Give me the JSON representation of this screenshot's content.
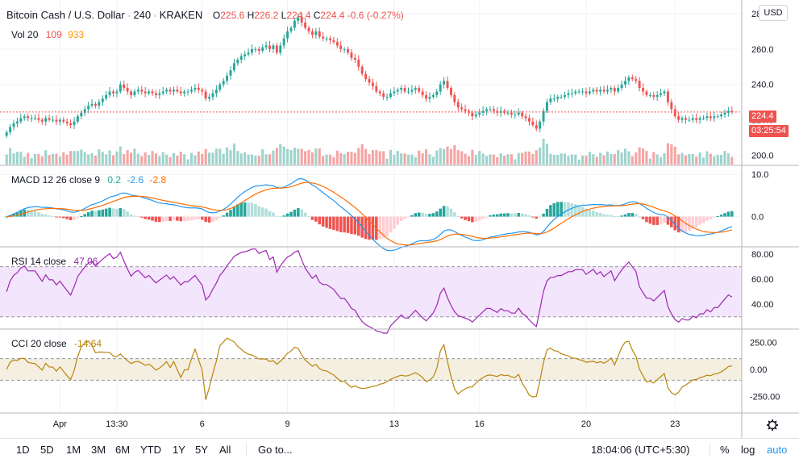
{
  "header": {
    "symbol": "Bitcoin Cash / U.S. Dollar",
    "interval": "240",
    "exchange": "KRAKEN",
    "open_label": "O",
    "open": "225.6",
    "high_label": "H",
    "high": "226.2",
    "low_label": "L",
    "low": "224.4",
    "close_label": "C",
    "close": "224.4",
    "change": "-0.6 (-0.27%)",
    "volume_label": "Vol 20",
    "volume_value": "109",
    "volume_ma": "933"
  },
  "currency": "USD",
  "last_price": "224.4",
  "countdown": "03:25:54",
  "macd_legend": {
    "label": "MACD 12 26 close 9",
    "hist": "0.2",
    "macd": "-2.6",
    "signal": "-2.8"
  },
  "rsi_legend": {
    "label": "RSI 14 close",
    "value": "47.06"
  },
  "cci_legend": {
    "label": "CCI 20 close",
    "value": "-14.64"
  },
  "bottom": {
    "ranges": [
      "1D",
      "5D",
      "1M",
      "3M",
      "6M",
      "YTD",
      "1Y",
      "5Y",
      "All"
    ],
    "goto": "Go to...",
    "clock": "18:04:06 (UTC+5:30)",
    "percent": "%",
    "log": "log",
    "auto": "auto"
  },
  "colors": {
    "up": "#26a69a",
    "down": "#ef5350",
    "vol_up": "#9fd3cc",
    "vol_down": "#f5a5a3",
    "macd_line": "#2196f3",
    "signal_line": "#ff6d00",
    "rsi_line": "#9c27b0",
    "rsi_band": "#f3e5fc",
    "cci_line": "#b8860b",
    "cci_band": "#f5efe2",
    "grid": "#f0f3fa",
    "axis_text": "#131722"
  },
  "chart_data": [
    {
      "type": "candlestick",
      "title": "Bitcoin Cash / U.S. Dollar · 240 · KRAKEN",
      "x_ticks": [
        "Apr",
        "13:30",
        "6",
        "9",
        "13",
        "16",
        "20",
        "23"
      ],
      "y_ticks": [
        200.0,
        220.0,
        240.0,
        260.0,
        280.0
      ],
      "ylim": [
        197,
        285
      ],
      "last_price_line": 224.4,
      "close": [
        213,
        216,
        218,
        219,
        221,
        222,
        221,
        221,
        221,
        220,
        219,
        221,
        220,
        220,
        219,
        220,
        219,
        218,
        217,
        219,
        222,
        224,
        226,
        228,
        229,
        228,
        230,
        232,
        234,
        236,
        235,
        236,
        240,
        238,
        236,
        234,
        236,
        237,
        236,
        235,
        236,
        235,
        234,
        235,
        236,
        237,
        236,
        237,
        236,
        235,
        236,
        236,
        237,
        238,
        237,
        236,
        232,
        233,
        235,
        237,
        240,
        242,
        245,
        248,
        252,
        254,
        256,
        257,
        258,
        260,
        260,
        259,
        261,
        262,
        260,
        262,
        258,
        262,
        266,
        270,
        272,
        276,
        278,
        275,
        272,
        270,
        268,
        270,
        267,
        266,
        266,
        265,
        264,
        262,
        260,
        260,
        258,
        255,
        254,
        250,
        246,
        243,
        241,
        239,
        236,
        235,
        233,
        233,
        235,
        236,
        237,
        238,
        236,
        236,
        237,
        238,
        236,
        234,
        232,
        233,
        234,
        236,
        240,
        242,
        238,
        234,
        230,
        227,
        226,
        225,
        224,
        222,
        223,
        224,
        225,
        226,
        226,
        225,
        224,
        225,
        224,
        224,
        223,
        223,
        224,
        222,
        221,
        219,
        217,
        215,
        219,
        225,
        230,
        232,
        232,
        233,
        233,
        234,
        235,
        235,
        236,
        236,
        236,
        235,
        236,
        237,
        236,
        237,
        236,
        237,
        238,
        236,
        238,
        240,
        242,
        244,
        243,
        242,
        238,
        236,
        234,
        234,
        233,
        234,
        235,
        236,
        230,
        226,
        222,
        220,
        221,
        220,
        220,
        221,
        220,
        221,
        221,
        222,
        221,
        222,
        222,
        223,
        224,
        225,
        224.4
      ],
      "volume_scale_max": 100
    },
    {
      "type": "line",
      "name": "MACD 12 26 close 9",
      "y_ticks": [
        10.0,
        0.0
      ],
      "ylim": [
        -6,
        11
      ],
      "series": [
        "macd",
        "signal",
        "histogram"
      ]
    },
    {
      "type": "line",
      "name": "RSI 14 close",
      "y_ticks": [
        80.0,
        60.0,
        40.0
      ],
      "ylim": [
        24,
        82
      ],
      "band": [
        30,
        70
      ]
    },
    {
      "type": "line",
      "name": "CCI 20 close",
      "y_ticks": [
        250.0,
        0.0,
        -250.0
      ],
      "ylim": [
        -360,
        330
      ],
      "band": [
        -100,
        100
      ]
    }
  ]
}
